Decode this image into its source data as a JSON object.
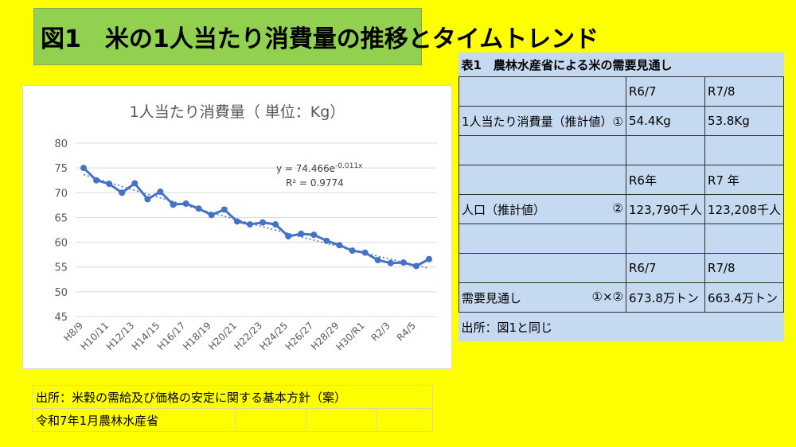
{
  "title": "図1　米の1人当たり消費量の推移とタイムトレンド",
  "source": {
    "line1": "出所：米穀の需給及び価格の安定に関する基本方針（案）",
    "line2": "令和7年1月農林水産省"
  },
  "table1": {
    "caption": "表1　農林水産省による米の需要見通し",
    "rows": [
      {
        "label": "",
        "tag": "",
        "v1": "R6/7",
        "v2": "R7/8"
      },
      {
        "label": "1人当たり消費量（推計値）①",
        "tag": "",
        "v1": "54.4Kg",
        "v2": "53.8Kg"
      },
      {
        "label": "",
        "tag": "",
        "v1": "",
        "v2": ""
      },
      {
        "label": "",
        "tag": "",
        "v1": "R6年",
        "v2": "R7 年"
      },
      {
        "label": "人口（推計値）",
        "tag": "②",
        "v1": "123,790千人",
        "v2": "123,208千人"
      },
      {
        "label": "",
        "tag": "",
        "v1": "",
        "v2": ""
      },
      {
        "label": "",
        "tag": "",
        "v1": "R6/7",
        "v2": "R7/8"
      },
      {
        "label": "需要見通し",
        "tag": "①×②",
        "v1": "673.8万トン",
        "v2": "663.4万トン"
      }
    ],
    "footer": "出所：図1と同じ"
  },
  "chart_data": {
    "type": "line",
    "title": "1人当たり消費量（ 単位：Kg）",
    "ylim": [
      45,
      80
    ],
    "yticks": [
      45,
      50,
      55,
      60,
      65,
      70,
      75,
      80
    ],
    "grid": true,
    "x": [
      "H8/9",
      "H9/10",
      "H10/11",
      "H11/12",
      "H12/13",
      "H13/14",
      "H14/15",
      "H15/16",
      "H16/17",
      "H17/18",
      "H18/19",
      "H19/20",
      "H20/21",
      "H21/22",
      "H22/23",
      "H23/24",
      "H24/25",
      "H25/26",
      "H26/27",
      "H27/28",
      "H28/29",
      "H29/30",
      "H30/R1",
      "R1/2",
      "R2/3",
      "R3/4",
      "R4/5",
      "R5/6"
    ],
    "xtick_labels_shown": [
      "H8/9",
      "H10/11",
      "H12/13",
      "H14/15",
      "H16/17",
      "H18/19",
      "H20/21",
      "H22/23",
      "H24/25",
      "H26/27",
      "H28/29",
      "H30/R1",
      "R2/3",
      "R4/5"
    ],
    "series": [
      {
        "values": [
          75.0,
          72.5,
          71.8,
          70.0,
          71.9,
          68.7,
          70.2,
          67.6,
          67.8,
          66.8,
          65.5,
          66.6,
          64.2,
          63.6,
          64.0,
          63.6,
          61.2,
          61.7,
          61.5,
          60.3,
          59.4,
          58.3,
          57.9,
          56.4,
          55.8,
          55.9,
          55.2,
          56.6
        ],
        "color": "#4472c4"
      }
    ],
    "trendline": {
      "type": "exponential",
      "a": 74.466,
      "b": -0.011,
      "equation": "y = 74.466e",
      "exponent": "-0.011x",
      "r2": "R² = 0.9774",
      "color": "#4472c4"
    }
  }
}
